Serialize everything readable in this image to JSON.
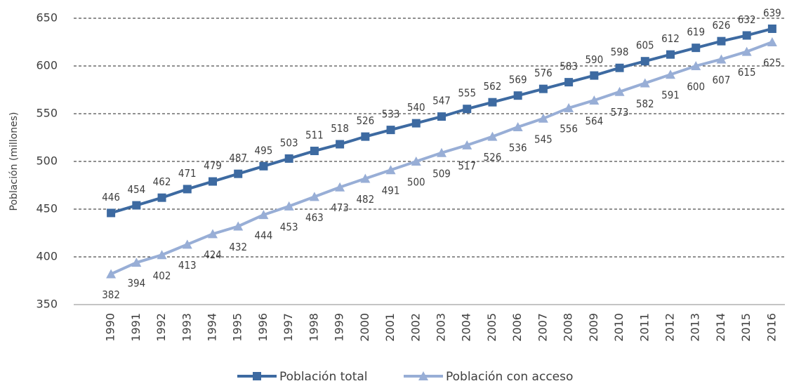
{
  "chart_data": {
    "type": "line",
    "y_label": "Población (millones)",
    "categories": [
      "1990",
      "1991",
      "1992",
      "1993",
      "1994",
      "1995",
      "1996",
      "1997",
      "1998",
      "1999",
      "2000",
      "2001",
      "2002",
      "2003",
      "2004",
      "2005",
      "2006",
      "2007",
      "2008",
      "2009",
      "2010",
      "2011",
      "2012",
      "2013",
      "2014",
      "2015",
      "2016"
    ],
    "series": [
      {
        "name": "Población total",
        "color": "#3d6aa1",
        "marker": "square",
        "values": [
          446,
          454,
          462,
          471,
          479,
          487,
          495,
          503,
          511,
          518,
          526,
          533,
          540,
          547,
          555,
          562,
          569,
          576,
          583,
          590,
          598,
          605,
          612,
          619,
          626,
          632,
          639
        ]
      },
      {
        "name": "Población con acceso",
        "color": "#98aed6",
        "marker": "triangle",
        "values": [
          382,
          394,
          402,
          413,
          424,
          432,
          444,
          453,
          463,
          473,
          482,
          491,
          500,
          509,
          517,
          526,
          536,
          545,
          556,
          564,
          573,
          582,
          591,
          600,
          607,
          615,
          625
        ]
      }
    ],
    "ylim": [
      350,
      650
    ],
    "yticks": [
      350,
      400,
      450,
      500,
      550,
      600,
      650
    ],
    "grid": true,
    "legend": "bottom"
  }
}
